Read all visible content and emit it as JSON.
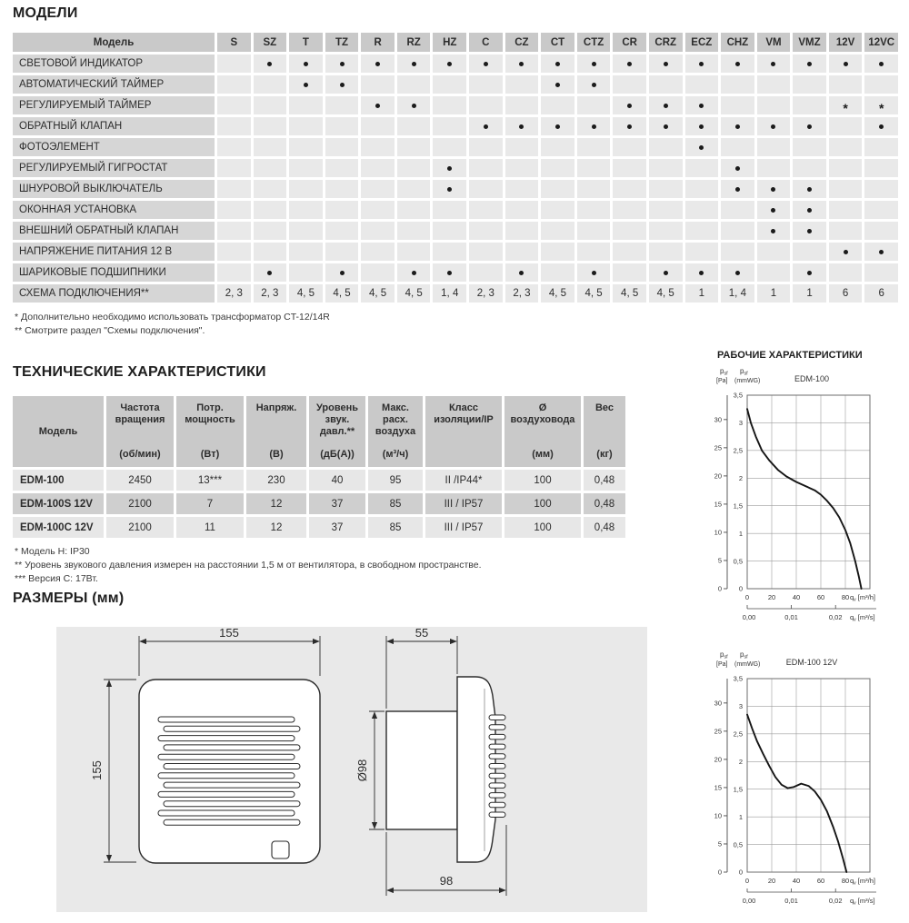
{
  "models_section": {
    "title": "МОДЕЛИ",
    "table": {
      "header_label": "Модель",
      "columns": [
        "S",
        "SZ",
        "T",
        "TZ",
        "R",
        "RZ",
        "HZ",
        "C",
        "CZ",
        "CT",
        "CTZ",
        "CR",
        "CRZ",
        "ECZ",
        "CHZ",
        "VM",
        "VMZ",
        "12V",
        "12VC"
      ],
      "rows": [
        {
          "label": "СВЕТОВОЙ ИНДИКАТОР",
          "cells": [
            "",
            "•",
            "•",
            "•",
            "•",
            "•",
            "•",
            "•",
            "•",
            "•",
            "•",
            "•",
            "•",
            "•",
            "•",
            "•",
            "•",
            "•",
            "•"
          ]
        },
        {
          "label": "АВТОМАТИЧЕСКИЙ ТАЙМЕР",
          "cells": [
            "",
            "",
            "•",
            "•",
            "",
            "",
            "",
            "",
            "",
            "•",
            "•",
            "",
            "",
            "",
            "",
            "",
            "",
            "",
            ""
          ]
        },
        {
          "label": "РЕГУЛИРУЕМЫЙ ТАЙМЕР",
          "cells": [
            "",
            "",
            "",
            "",
            "•",
            "•",
            "",
            "",
            "",
            "",
            "",
            "•",
            "•",
            "•",
            "",
            "",
            "",
            "*",
            "*"
          ]
        },
        {
          "label": "ОБРАТНЫЙ КЛАПАН",
          "cells": [
            "",
            "",
            "",
            "",
            "",
            "",
            "",
            "•",
            "•",
            "•",
            "•",
            "•",
            "•",
            "•",
            "•",
            "•",
            "•",
            "",
            "•"
          ]
        },
        {
          "label": "ФОТОЭЛЕМЕНТ",
          "cells": [
            "",
            "",
            "",
            "",
            "",
            "",
            "",
            "",
            "",
            "",
            "",
            "",
            "",
            "•",
            "",
            "",
            "",
            "",
            ""
          ]
        },
        {
          "label": "РЕГУЛИРУЕМЫЙ ГИГРОСТАТ",
          "cells": [
            "",
            "",
            "",
            "",
            "",
            "",
            "•",
            "",
            "",
            "",
            "",
            "",
            "",
            "",
            "•",
            "",
            "",
            "",
            ""
          ]
        },
        {
          "label": "ШНУРОВОЙ ВЫКЛЮЧАТЕЛЬ",
          "cells": [
            "",
            "",
            "",
            "",
            "",
            "",
            "•",
            "",
            "",
            "",
            "",
            "",
            "",
            "",
            "•",
            "•",
            "•",
            "",
            ""
          ]
        },
        {
          "label": "ОКОННАЯ УСТАНОВКА",
          "cells": [
            "",
            "",
            "",
            "",
            "",
            "",
            "",
            "",
            "",
            "",
            "",
            "",
            "",
            "",
            "",
            "•",
            "•",
            "",
            ""
          ]
        },
        {
          "label": "ВНЕШНИЙ ОБРАТНЫЙ КЛАПАН",
          "cells": [
            "",
            "",
            "",
            "",
            "",
            "",
            "",
            "",
            "",
            "",
            "",
            "",
            "",
            "",
            "",
            "•",
            "•",
            "",
            ""
          ]
        },
        {
          "label": "НАПРЯЖЕНИЕ ПИТАНИЯ 12 В",
          "cells": [
            "",
            "",
            "",
            "",
            "",
            "",
            "",
            "",
            "",
            "",
            "",
            "",
            "",
            "",
            "",
            "",
            "",
            "•",
            "•"
          ]
        },
        {
          "label": "ШАРИКОВЫЕ ПОДШИПНИКИ",
          "cells": [
            "",
            "•",
            "",
            "•",
            "",
            "•",
            "•",
            "",
            "•",
            "",
            "•",
            "",
            "•",
            "•",
            "•",
            "",
            "•",
            "",
            ""
          ]
        },
        {
          "label": "СХЕМА ПОДКЛЮЧЕНИЯ**",
          "cells": [
            "2, 3",
            "2, 3",
            "4, 5",
            "4, 5",
            "4, 5",
            "4, 5",
            "1, 4",
            "2, 3",
            "2, 3",
            "4, 5",
            "4, 5",
            "4, 5",
            "4, 5",
            "1",
            "1, 4",
            "1",
            "1",
            "6",
            "6"
          ]
        }
      ]
    },
    "footnotes": [
      "* Дополнительно необходимо использовать трансформатор CT-12/14R",
      "** Смотрите раздел \"Схемы подключения\"."
    ]
  },
  "tech_section": {
    "title": "ТЕХНИЧЕСКИЕ ХАРАКТЕРИСТИКИ",
    "columns": [
      {
        "title": "Модель",
        "unit": ""
      },
      {
        "title": "Частота вращения",
        "unit": "(об/мин)"
      },
      {
        "title": "Потр. мощность",
        "unit": "(Вт)"
      },
      {
        "title": "Напряж.",
        "unit": "(В)"
      },
      {
        "title": "Уровень звук. давл.**",
        "unit": "(дБ(А))"
      },
      {
        "title": "Макс. расх. воздуха",
        "unit": "(м³/ч)"
      },
      {
        "title": "Класс изоляции/IP",
        "unit": ""
      },
      {
        "title": "Ø воздуховода",
        "unit": "(мм)"
      },
      {
        "title": "Вес",
        "unit": "(кг)"
      }
    ],
    "rows": [
      [
        "EDM-100",
        "2450",
        "13***",
        "230",
        "40",
        "95",
        "II /IP44*",
        "100",
        "0,48"
      ],
      [
        "EDM-100S 12V",
        "2100",
        "7",
        "12",
        "37",
        "85",
        "III / IP57",
        "100",
        "0,48"
      ],
      [
        "EDM-100C 12V",
        "2100",
        "11",
        "12",
        "37",
        "85",
        "III / IP57",
        "100",
        "0,48"
      ]
    ],
    "footnotes": [
      "* Модель H: IP30",
      "** Уровень звукового давления измерен на расстоянии 1,5 м от вентилятора, в свободном пространстве.",
      "*** Версия C: 17Вт."
    ]
  },
  "dimensions_section": {
    "title": "РАЗМЕРЫ (мм)",
    "front_width": "155",
    "front_height": "155",
    "depth_front": "55",
    "depth_total": "98",
    "duct_diameter": "Ø98"
  },
  "charts_section": {
    "title": "РАБОЧИЕ ХАРАКТЕРИСТИКИ"
  },
  "chart_data": [
    {
      "type": "line",
      "title": "EDM-100",
      "y_primary": {
        "symbol": "p",
        "subscript": "sf",
        "unit": "[Pa]",
        "ticks": [
          0,
          5,
          10,
          15,
          20,
          25,
          30
        ],
        "pa_per_mmwg": 9.80665
      },
      "y_secondary": {
        "symbol": "p",
        "subscript": "sf",
        "unit": "(mmWG)",
        "tick_values": [
          0,
          0.5,
          1,
          1.5,
          2,
          2.5,
          3,
          3.5
        ],
        "tick_labels": [
          "0",
          "0,5",
          "1",
          "1,5",
          "2",
          "2,5",
          "3",
          "3,5"
        ],
        "max": 3.5
      },
      "x": {
        "symbol": "q",
        "subscript": "v",
        "unit": "[m³/h]",
        "ticks": [
          0,
          20,
          40,
          60,
          80
        ],
        "grid_step": 20,
        "max": 100
      },
      "x_secondary": {
        "symbol": "q",
        "subscript": "v",
        "unit": "[m³/s]",
        "tick_labels": [
          "0,00",
          "0,01",
          "0,02"
        ],
        "tick_positions_m3h": [
          0,
          36,
          72
        ]
      },
      "curve_points_m3h_mmwg": [
        [
          0,
          3.25
        ],
        [
          3,
          3.0
        ],
        [
          7,
          2.75
        ],
        [
          12,
          2.5
        ],
        [
          18,
          2.32
        ],
        [
          25,
          2.15
        ],
        [
          32,
          2.03
        ],
        [
          40,
          1.93
        ],
        [
          48,
          1.85
        ],
        [
          55,
          1.78
        ],
        [
          60,
          1.7
        ],
        [
          65,
          1.59
        ],
        [
          70,
          1.46
        ],
        [
          75,
          1.29
        ],
        [
          80,
          1.06
        ],
        [
          84,
          0.82
        ],
        [
          88,
          0.5
        ],
        [
          91,
          0.22
        ],
        [
          93,
          0
        ]
      ]
    },
    {
      "type": "line",
      "title": "EDM-100 12V",
      "y_primary": {
        "symbol": "p",
        "subscript": "sf",
        "unit": "[Pa]",
        "ticks": [
          0,
          5,
          10,
          15,
          20,
          25,
          30
        ],
        "pa_per_mmwg": 9.80665
      },
      "y_secondary": {
        "symbol": "p",
        "subscript": "sf",
        "unit": "(mmWG)",
        "tick_values": [
          0,
          0.5,
          1,
          1.5,
          2,
          2.5,
          3,
          3.5
        ],
        "tick_labels": [
          "0",
          "0,5",
          "1",
          "1,5",
          "2",
          "2,5",
          "3",
          "3,5"
        ],
        "max": 3.5
      },
      "x": {
        "symbol": "q",
        "subscript": "v",
        "unit": "[m³/h]",
        "ticks": [
          0,
          20,
          40,
          60,
          80
        ],
        "grid_step": 20,
        "max": 100
      },
      "x_secondary": {
        "symbol": "q",
        "subscript": "v",
        "unit": "[m³/s]",
        "tick_labels": [
          "0,00",
          "0,01",
          "0,02"
        ],
        "tick_positions_m3h": [
          0,
          36,
          72
        ]
      },
      "curve_points_m3h_mmwg": [
        [
          0,
          2.85
        ],
        [
          4,
          2.6
        ],
        [
          8,
          2.37
        ],
        [
          13,
          2.14
        ],
        [
          18,
          1.92
        ],
        [
          23,
          1.72
        ],
        [
          28,
          1.58
        ],
        [
          33,
          1.52
        ],
        [
          38,
          1.54
        ],
        [
          44,
          1.6
        ],
        [
          50,
          1.56
        ],
        [
          55,
          1.46
        ],
        [
          60,
          1.31
        ],
        [
          65,
          1.1
        ],
        [
          70,
          0.82
        ],
        [
          74,
          0.56
        ],
        [
          78,
          0.25
        ],
        [
          81,
          0
        ]
      ]
    }
  ]
}
